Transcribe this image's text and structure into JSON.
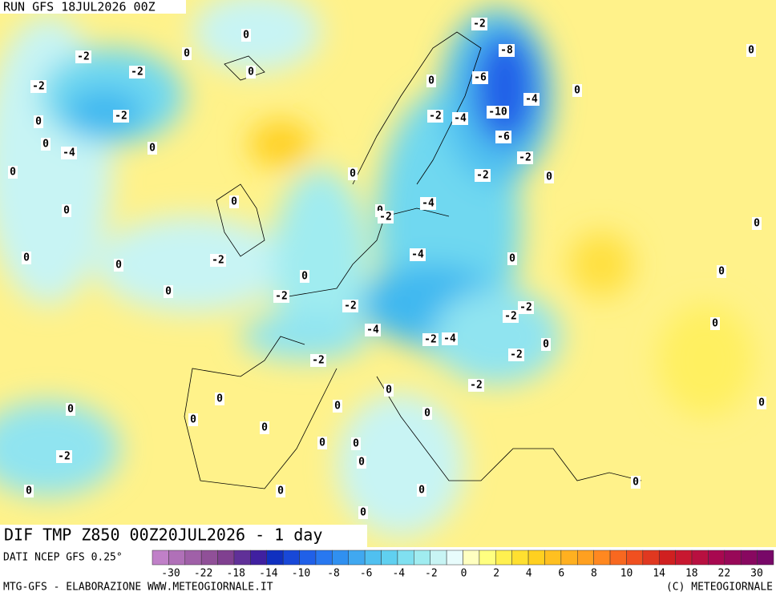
{
  "header": {
    "run": "RUN GFS 18JUL2026 00Z"
  },
  "map": {
    "title": "DIF TMP Z850 00Z20JUL2026 - 1 day",
    "contour_labels": [
      -2,
      0,
      -2,
      0,
      -8,
      0,
      -2,
      0,
      -2,
      -6,
      0,
      0,
      -4,
      0,
      -2,
      -2,
      -4,
      -10,
      0,
      0,
      -6,
      -4,
      -2,
      0,
      0,
      -2,
      0,
      0,
      -4,
      0,
      0,
      -2,
      0,
      0,
      -2,
      0,
      -4,
      0,
      0,
      0,
      0,
      -2,
      -2,
      -2,
      -2,
      0,
      -4,
      -2,
      -4,
      0,
      -2,
      -2,
      -2,
      0,
      0,
      0,
      0,
      0,
      0,
      0,
      0,
      0,
      0,
      -2,
      0,
      0,
      0,
      0,
      0,
      0
    ]
  },
  "legend": {
    "source": "DATI NCEP GFS 0.25°",
    "ticks": [
      -30,
      -22,
      -18,
      -14,
      -10,
      -8,
      -6,
      -4,
      -2,
      0,
      2,
      4,
      6,
      8,
      10,
      14,
      18,
      22,
      30
    ]
  },
  "footer": {
    "left": "MTG-GFS - ELABORAZIONE WWW.METEOGIORNALE.IT",
    "right": "(C) METEOGIORNALE"
  }
}
